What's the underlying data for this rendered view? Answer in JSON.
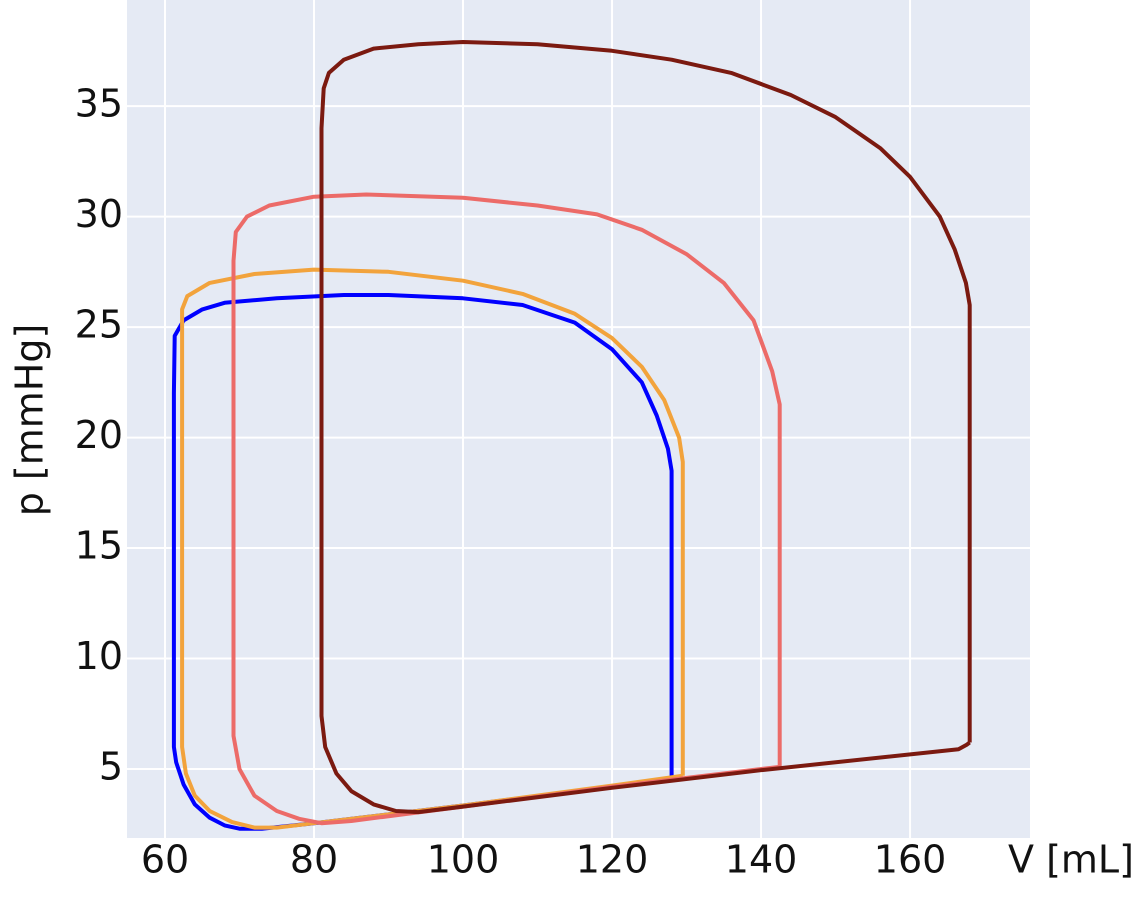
{
  "chart_data": {
    "type": "line",
    "xlabel": "V [mL]",
    "ylabel": "p [mmHg]",
    "xlim": [
      54.9,
      176.1
    ],
    "ylim": [
      1.88,
      39.8
    ],
    "xticks": [
      60,
      80,
      100,
      120,
      140,
      160
    ],
    "yticks": [
      5,
      10,
      15,
      20,
      25,
      30,
      35
    ],
    "grid": true,
    "background": "#e5eaf4",
    "series": [
      {
        "color": "#0000ff",
        "x": [
          128,
          128,
          127.5,
          126,
          124,
          120,
          115,
          108,
          100,
          90,
          84,
          75,
          68,
          65,
          62.5,
          61.3,
          61.2,
          61.2,
          61.5,
          62.5,
          64,
          66,
          68,
          70,
          73,
          80,
          100,
          120,
          128
        ],
        "values": [
          4.6,
          18.5,
          19.5,
          21,
          22.5,
          24,
          25.2,
          26,
          26.3,
          26.45,
          26.45,
          26.3,
          26.1,
          25.8,
          25.3,
          24.6,
          22,
          6,
          5.3,
          4.3,
          3.4,
          2.8,
          2.45,
          2.3,
          2.3,
          2.55,
          3.35,
          4.2,
          4.6
        ]
      },
      {
        "color": "#f2a33c",
        "x": [
          129.5,
          129.5,
          129,
          127,
          124,
          120,
          115,
          108,
          100,
          90,
          80,
          72,
          66,
          63,
          62.3,
          62.3,
          62.8,
          64,
          66,
          69,
          72,
          75,
          80,
          100,
          120,
          129.5
        ],
        "values": [
          4.7,
          18.9,
          20,
          21.7,
          23.2,
          24.5,
          25.6,
          26.5,
          27.1,
          27.5,
          27.6,
          27.4,
          27,
          26.4,
          25.8,
          6,
          4.8,
          3.8,
          3.1,
          2.6,
          2.35,
          2.35,
          2.55,
          3.35,
          4.25,
          4.7
        ]
      },
      {
        "color": "#ec6b68",
        "x": [
          142.5,
          142.5,
          141.5,
          139,
          135,
          130,
          124,
          118,
          110,
          100,
          87,
          80,
          74,
          71,
          69.5,
          69.2,
          69.2,
          70,
          72,
          75,
          78,
          81,
          85,
          100,
          120,
          142.5
        ],
        "values": [
          5.1,
          21.5,
          23,
          25.3,
          27,
          28.3,
          29.4,
          30.1,
          30.5,
          30.85,
          31,
          30.9,
          30.5,
          30,
          29.3,
          28,
          6.5,
          5,
          3.8,
          3.1,
          2.75,
          2.55,
          2.65,
          3.3,
          4.2,
          5.1
        ]
      },
      {
        "color": "#7b1a10",
        "x": [
          168,
          168,
          167.5,
          166,
          164,
          160,
          156,
          150,
          144,
          136,
          128,
          120,
          110,
          100,
          94,
          88,
          84,
          82,
          81.3,
          81,
          81,
          81.5,
          83,
          85,
          88,
          91,
          94,
          100,
          120,
          140,
          166.5,
          167.6,
          168
        ],
        "values": [
          6.2,
          26,
          27,
          28.5,
          30,
          31.8,
          33.1,
          34.5,
          35.5,
          36.5,
          37.1,
          37.5,
          37.8,
          37.9,
          37.8,
          37.6,
          37.1,
          36.5,
          35.8,
          34,
          7.4,
          6,
          4.8,
          4,
          3.4,
          3.1,
          3.05,
          3.3,
          4.15,
          4.95,
          5.9,
          6.1,
          6.2
        ]
      }
    ]
  }
}
